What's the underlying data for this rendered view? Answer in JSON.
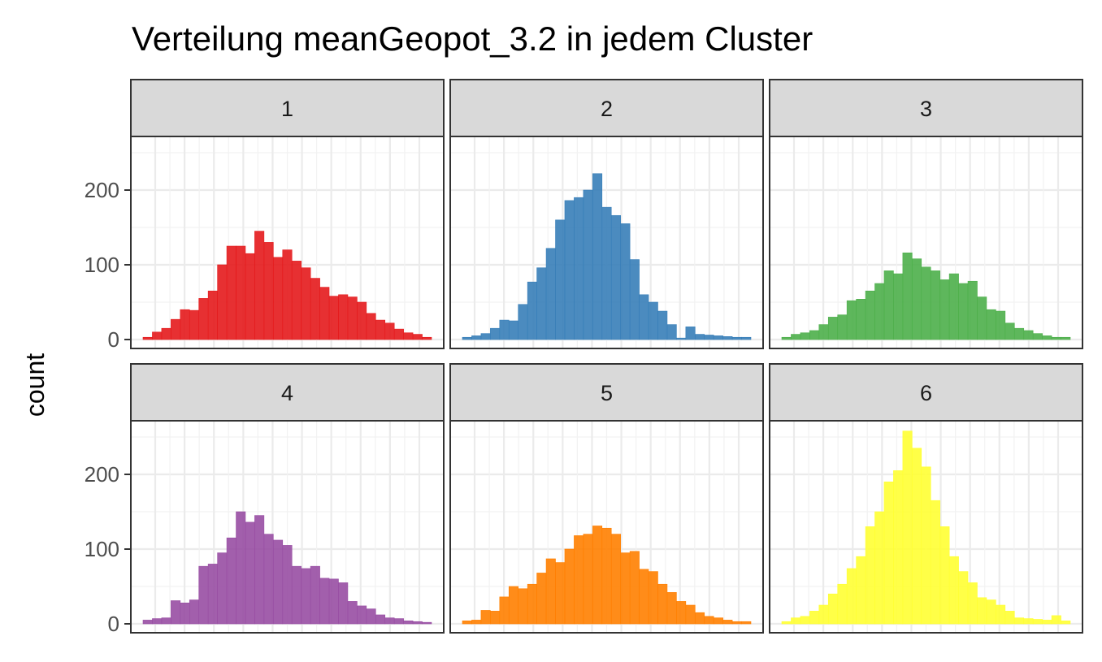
{
  "chart_data": {
    "type": "bar",
    "title": "Verteilung meanGeopot_3.2 in jedem Cluster",
    "xlabel": "",
    "ylabel": "count",
    "ylim": [
      0,
      265
    ],
    "yticks": [
      0,
      100,
      200
    ],
    "grid": true,
    "legend": "none",
    "panels": [
      {
        "label": "1",
        "color": "#E41A1C",
        "values": [
          3,
          10,
          15,
          27,
          40,
          39,
          55,
          65,
          100,
          125,
          125,
          115,
          145,
          130,
          110,
          120,
          105,
          96,
          82,
          70,
          58,
          60,
          57,
          50,
          35,
          26,
          22,
          14,
          9,
          7,
          3
        ]
      },
      {
        "label": "2",
        "color": "#377EB8",
        "values": [
          3,
          5,
          8,
          15,
          26,
          25,
          47,
          77,
          96,
          122,
          160,
          186,
          190,
          200,
          222,
          177,
          166,
          155,
          107,
          60,
          50,
          38,
          20,
          2,
          17,
          7,
          6,
          5,
          4,
          3,
          3
        ]
      },
      {
        "label": "3",
        "color": "#4DAF4A",
        "values": [
          3,
          7,
          9,
          12,
          20,
          30,
          33,
          52,
          54,
          65,
          75,
          92,
          88,
          116,
          108,
          97,
          92,
          80,
          88,
          75,
          78,
          57,
          40,
          38,
          22,
          15,
          12,
          8,
          5,
          3,
          3
        ]
      },
      {
        "label": "4",
        "color": "#984EA3",
        "values": [
          5,
          7,
          8,
          31,
          28,
          32,
          77,
          80,
          95,
          115,
          150,
          136,
          145,
          120,
          112,
          105,
          77,
          74,
          77,
          61,
          60,
          55,
          30,
          24,
          20,
          12,
          8,
          7,
          4,
          3,
          2
        ]
      },
      {
        "label": "5",
        "color": "#FF7F00",
        "values": [
          4,
          5,
          18,
          17,
          36,
          50,
          47,
          53,
          68,
          87,
          82,
          100,
          118,
          120,
          131,
          128,
          120,
          95,
          97,
          73,
          70,
          53,
          42,
          30,
          25,
          15,
          10,
          8,
          5,
          3,
          3
        ]
      },
      {
        "label": "6",
        "color": "#FFFF33",
        "values": [
          3,
          8,
          10,
          17,
          25,
          40,
          53,
          74,
          90,
          130,
          150,
          190,
          205,
          258,
          235,
          210,
          165,
          130,
          90,
          70,
          55,
          35,
          32,
          25,
          17,
          8,
          7,
          6,
          5,
          11,
          4
        ]
      }
    ]
  }
}
